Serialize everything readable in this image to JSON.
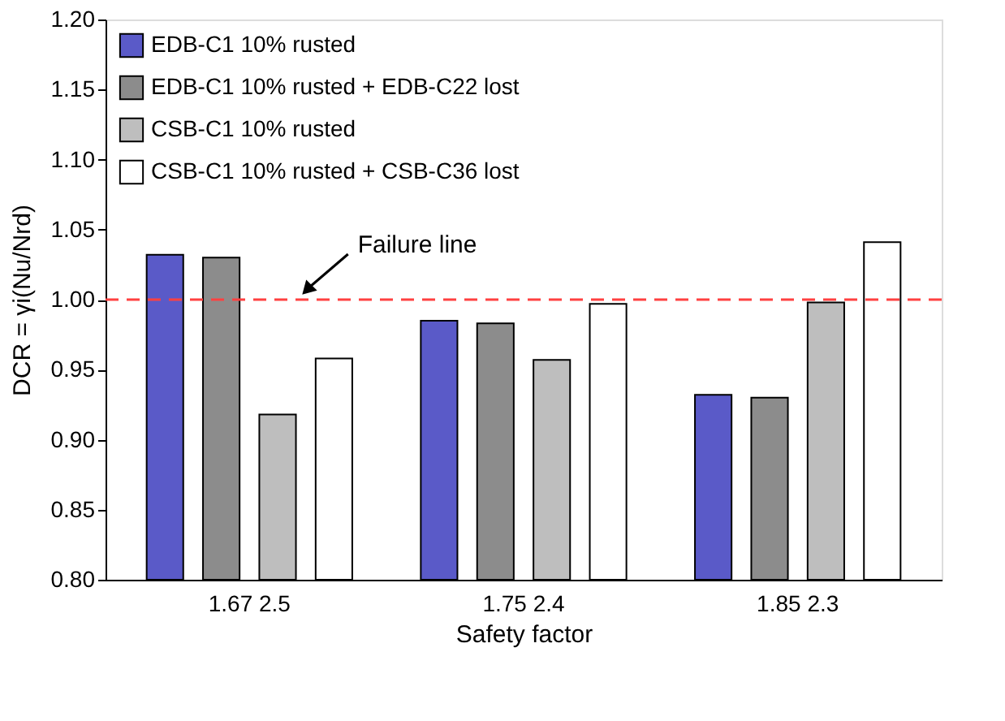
{
  "chart_data": {
    "type": "bar",
    "xlabel": "Safety factor",
    "ylabel": "DCR = γi(Nu/Nrd)",
    "categories": [
      "1.67 2.5",
      "1.75 2.4",
      "1.85 2.3"
    ],
    "series": [
      {
        "name": "EDB-C1 10% rusted",
        "color": "#5a5ac8",
        "values": [
          1.032,
          0.985,
          0.932
        ]
      },
      {
        "name": "EDB-C1 10% rusted + EDB-C22 lost",
        "color": "#8c8c8c",
        "values": [
          1.03,
          0.983,
          0.93
        ]
      },
      {
        "name": "CSB-C1 10% rusted",
        "color": "#bebebe",
        "values": [
          0.918,
          0.957,
          0.998
        ]
      },
      {
        "name": "CSB-C1 10% rusted + CSB-C36 lost",
        "color": "#ffffff",
        "values": [
          0.958,
          0.997,
          1.041
        ]
      }
    ],
    "ylim": [
      0.8,
      1.2
    ],
    "yticks": [
      {
        "value": 1.2,
        "label": "1.20"
      },
      {
        "value": 1.15,
        "label": "1.15"
      },
      {
        "value": 1.1,
        "label": "1.10"
      },
      {
        "value": 1.05,
        "label": "1.05"
      },
      {
        "value": 1.0,
        "label": "1.00"
      },
      {
        "value": 0.95,
        "label": "0.95"
      },
      {
        "value": 0.9,
        "label": "0.90"
      },
      {
        "value": 0.85,
        "label": "0.85"
      },
      {
        "value": 0.8,
        "label": "0.80"
      }
    ],
    "ref_lines": [
      {
        "axis": "y",
        "value": 1.0,
        "label": "Failure line",
        "color": "#ff4040",
        "line_style": "dashed"
      }
    ],
    "grid": false,
    "legend": "top left"
  }
}
